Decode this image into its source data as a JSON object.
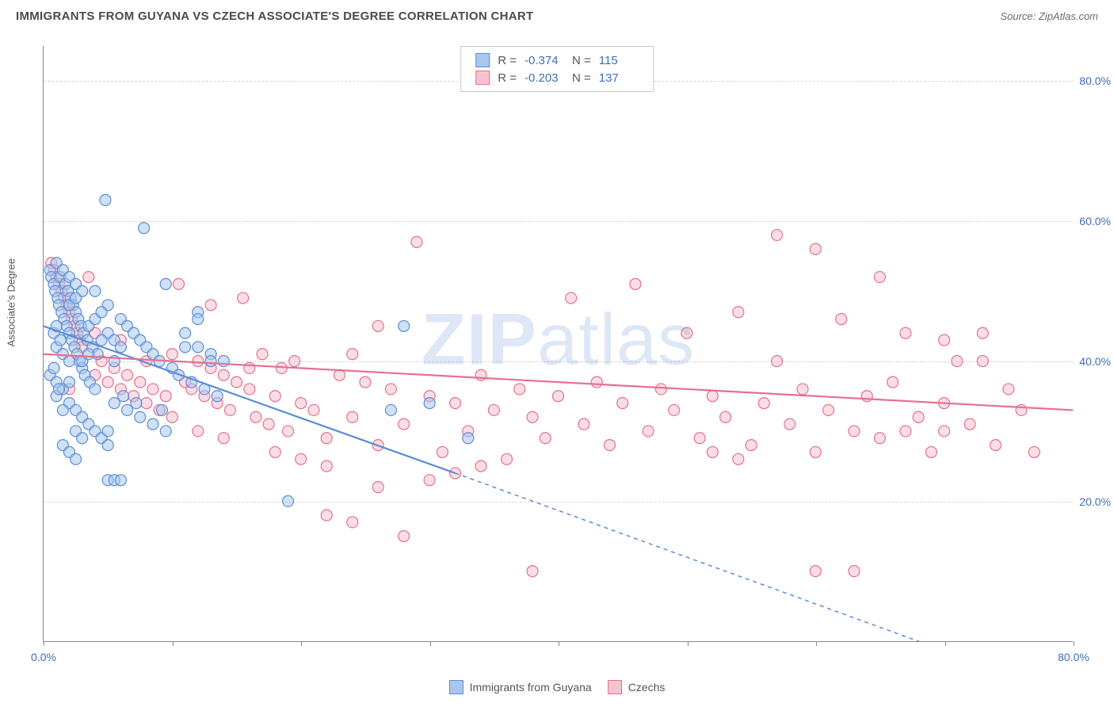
{
  "header": {
    "title": "IMMIGRANTS FROM GUYANA VS CZECH ASSOCIATE'S DEGREE CORRELATION CHART",
    "source": "Source: ZipAtlas.com"
  },
  "chart": {
    "type": "scatter",
    "xlim": [
      0,
      80
    ],
    "ylim": [
      0,
      85
    ],
    "x_axis_label_min": "0.0%",
    "x_axis_label_max": "80.0%",
    "yticks": [
      {
        "v": 20,
        "label": "20.0%"
      },
      {
        "v": 40,
        "label": "40.0%"
      },
      {
        "v": 60,
        "label": "60.0%"
      },
      {
        "v": 80,
        "label": "80.0%"
      }
    ],
    "xtick_positions": [
      0,
      10,
      20,
      30,
      40,
      50,
      60,
      70,
      80
    ],
    "ylabel": "Associate's Degree",
    "background_color": "#ffffff",
    "grid_color": "#d4d4d4",
    "axis_color": "#888888",
    "tick_label_color": "#3d6fb5",
    "watermark": "ZIPatlas",
    "marker_radius": 7,
    "marker_stroke_width": 1.2,
    "line_width": 2.2,
    "dash_pattern": "5,5"
  },
  "series": [
    {
      "name": "Immigrants from Guyana",
      "color_fill": "#a9c6ec",
      "color_stroke": "#5b8dd6",
      "fill_opacity": 0.55,
      "R": "-0.374",
      "N": "115",
      "trend": {
        "x1": 0,
        "y1": 45,
        "x2_solid": 32,
        "y2_solid": 24,
        "x2_dash": 80,
        "y2_dash": -8
      },
      "points": [
        [
          0.5,
          53
        ],
        [
          0.6,
          52
        ],
        [
          0.8,
          51
        ],
        [
          0.9,
          50
        ],
        [
          1,
          54
        ],
        [
          1.1,
          49
        ],
        [
          1.2,
          48
        ],
        [
          1.3,
          52
        ],
        [
          1.4,
          47
        ],
        [
          1.5,
          53
        ],
        [
          1.6,
          46
        ],
        [
          1.7,
          51
        ],
        [
          1.8,
          45
        ],
        [
          1.9,
          50
        ],
        [
          2,
          44
        ],
        [
          2.1,
          49
        ],
        [
          2.2,
          43
        ],
        [
          2.3,
          48
        ],
        [
          2.4,
          42
        ],
        [
          2.5,
          47
        ],
        [
          2.6,
          41
        ],
        [
          2.7,
          46
        ],
        [
          2.8,
          40
        ],
        [
          2.9,
          45
        ],
        [
          3,
          39
        ],
        [
          3.1,
          44
        ],
        [
          3.2,
          38
        ],
        [
          3.4,
          43
        ],
        [
          3.6,
          37
        ],
        [
          3.8,
          42
        ],
        [
          4,
          36
        ],
        [
          4.2,
          41
        ],
        [
          4.8,
          63
        ],
        [
          5,
          48
        ],
        [
          5.5,
          40
        ],
        [
          6,
          46
        ],
        [
          6.2,
          35
        ],
        [
          6.5,
          45
        ],
        [
          7,
          44
        ],
        [
          7.2,
          34
        ],
        [
          7.5,
          43
        ],
        [
          7.8,
          59
        ],
        [
          8,
          42
        ],
        [
          8.5,
          41
        ],
        [
          9,
          40
        ],
        [
          9.2,
          33
        ],
        [
          9.5,
          51
        ],
        [
          10,
          39
        ],
        [
          10.5,
          38
        ],
        [
          11,
          42
        ],
        [
          11.5,
          37
        ],
        [
          12,
          47
        ],
        [
          12.5,
          36
        ],
        [
          13,
          41
        ],
        [
          13.5,
          35
        ],
        [
          14,
          40
        ],
        [
          2,
          34
        ],
        [
          2.5,
          33
        ],
        [
          3,
          32
        ],
        [
          3.5,
          31
        ],
        [
          4,
          30
        ],
        [
          4.5,
          29
        ],
        [
          5,
          28
        ],
        [
          1,
          35
        ],
        [
          1.5,
          36
        ],
        [
          2,
          37
        ],
        [
          2.5,
          30
        ],
        [
          3,
          29
        ],
        [
          3.5,
          45
        ],
        [
          4,
          46
        ],
        [
          4.5,
          47
        ],
        [
          5,
          44
        ],
        [
          5.5,
          43
        ],
        [
          6,
          42
        ],
        [
          1.5,
          28
        ],
        [
          2,
          27
        ],
        [
          2.5,
          26
        ],
        [
          3,
          40
        ],
        [
          3.5,
          41
        ],
        [
          4,
          50
        ],
        [
          2,
          52
        ],
        [
          2.5,
          51
        ],
        [
          3,
          50
        ],
        [
          1,
          42
        ],
        [
          1.5,
          41
        ],
        [
          2,
          40
        ],
        [
          0.8,
          44
        ],
        [
          1,
          45
        ],
        [
          1.3,
          43
        ],
        [
          5,
          23
        ],
        [
          5.5,
          23
        ],
        [
          6,
          23
        ],
        [
          12,
          46
        ],
        [
          4.5,
          43
        ],
        [
          5,
          30
        ],
        [
          0.5,
          38
        ],
        [
          0.8,
          39
        ],
        [
          1,
          37
        ],
        [
          1.2,
          36
        ],
        [
          1.5,
          33
        ],
        [
          2,
          48
        ],
        [
          2.5,
          49
        ],
        [
          11,
          44
        ],
        [
          12,
          42
        ],
        [
          13,
          40
        ],
        [
          19,
          20
        ],
        [
          27,
          33
        ],
        [
          28,
          45
        ],
        [
          30,
          34
        ],
        [
          33,
          29
        ],
        [
          5.5,
          34
        ],
        [
          6.5,
          33
        ],
        [
          7.5,
          32
        ],
        [
          8.5,
          31
        ],
        [
          9.5,
          30
        ]
      ]
    },
    {
      "name": "Czechs",
      "color_fill": "#f5c3ce",
      "color_stroke": "#e76f8e",
      "fill_opacity": 0.55,
      "R": "-0.203",
      "N": "137",
      "trend": {
        "x1": 0,
        "y1": 41,
        "x2_solid": 80,
        "y2_solid": 33,
        "x2_dash": 80,
        "y2_dash": 33
      },
      "points": [
        [
          0.6,
          54
        ],
        [
          0.8,
          53
        ],
        [
          1,
          52
        ],
        [
          1.2,
          51
        ],
        [
          1.4,
          50
        ],
        [
          1.6,
          49
        ],
        [
          1.8,
          48
        ],
        [
          2,
          47
        ],
        [
          2.2,
          46
        ],
        [
          2.4,
          45
        ],
        [
          2.6,
          44
        ],
        [
          2.8,
          43
        ],
        [
          3,
          42
        ],
        [
          3.5,
          52
        ],
        [
          4,
          38
        ],
        [
          4.5,
          40
        ],
        [
          5,
          37
        ],
        [
          5.5,
          39
        ],
        [
          6,
          36
        ],
        [
          6.5,
          38
        ],
        [
          7,
          35
        ],
        [
          7.5,
          37
        ],
        [
          8,
          34
        ],
        [
          8.5,
          36
        ],
        [
          9,
          33
        ],
        [
          9.5,
          35
        ],
        [
          10,
          32
        ],
        [
          10.5,
          51
        ],
        [
          11,
          37
        ],
        [
          11.5,
          36
        ],
        [
          12,
          40
        ],
        [
          12.5,
          35
        ],
        [
          13,
          39
        ],
        [
          13.5,
          34
        ],
        [
          14,
          38
        ],
        [
          14.5,
          33
        ],
        [
          15,
          37
        ],
        [
          15.5,
          49
        ],
        [
          16,
          36
        ],
        [
          16.5,
          32
        ],
        [
          17,
          41
        ],
        [
          17.5,
          31
        ],
        [
          18,
          35
        ],
        [
          18.5,
          39
        ],
        [
          19,
          30
        ],
        [
          19.5,
          40
        ],
        [
          20,
          34
        ],
        [
          21,
          33
        ],
        [
          22,
          29
        ],
        [
          23,
          38
        ],
        [
          24,
          32
        ],
        [
          25,
          37
        ],
        [
          26,
          28
        ],
        [
          27,
          36
        ],
        [
          28,
          31
        ],
        [
          29,
          57
        ],
        [
          30,
          35
        ],
        [
          31,
          27
        ],
        [
          32,
          34
        ],
        [
          33,
          30
        ],
        [
          34,
          38
        ],
        [
          35,
          33
        ],
        [
          36,
          26
        ],
        [
          37,
          36
        ],
        [
          38,
          32
        ],
        [
          39,
          29
        ],
        [
          40,
          35
        ],
        [
          41,
          49
        ],
        [
          42,
          31
        ],
        [
          43,
          37
        ],
        [
          44,
          28
        ],
        [
          45,
          34
        ],
        [
          46,
          51
        ],
        [
          47,
          30
        ],
        [
          48,
          36
        ],
        [
          49,
          33
        ],
        [
          50,
          44
        ],
        [
          51,
          29
        ],
        [
          52,
          35
        ],
        [
          53,
          32
        ],
        [
          54,
          47
        ],
        [
          55,
          28
        ],
        [
          56,
          34
        ],
        [
          57,
          40
        ],
        [
          58,
          31
        ],
        [
          59,
          36
        ],
        [
          60,
          27
        ],
        [
          61,
          33
        ],
        [
          62,
          46
        ],
        [
          63,
          30
        ],
        [
          64,
          35
        ],
        [
          65,
          29
        ],
        [
          66,
          37
        ],
        [
          67,
          44
        ],
        [
          68,
          32
        ],
        [
          69,
          27
        ],
        [
          70,
          34
        ],
        [
          71,
          40
        ],
        [
          72,
          31
        ],
        [
          73,
          44
        ],
        [
          74,
          28
        ],
        [
          75,
          36
        ],
        [
          76,
          33
        ],
        [
          77,
          27
        ],
        [
          60,
          56
        ],
        [
          65,
          52
        ],
        [
          70,
          43
        ],
        [
          57,
          58
        ],
        [
          18,
          27
        ],
        [
          20,
          26
        ],
        [
          22,
          25
        ],
        [
          24,
          41
        ],
        [
          26,
          45
        ],
        [
          10,
          41
        ],
        [
          12,
          30
        ],
        [
          14,
          29
        ],
        [
          16,
          39
        ],
        [
          8,
          40
        ],
        [
          6,
          43
        ],
        [
          4,
          44
        ],
        [
          2,
          36
        ],
        [
          22,
          18
        ],
        [
          24,
          17
        ],
        [
          26,
          22
        ],
        [
          28,
          15
        ],
        [
          30,
          23
        ],
        [
          32,
          24
        ],
        [
          34,
          25
        ],
        [
          13,
          48
        ],
        [
          60,
          10
        ],
        [
          63,
          10
        ],
        [
          52,
          27
        ],
        [
          54,
          26
        ],
        [
          67,
          30
        ],
        [
          70,
          30
        ],
        [
          73,
          40
        ],
        [
          38,
          10
        ]
      ]
    }
  ],
  "legend": {
    "series1_label": "Immigrants from Guyana",
    "series2_label": "Czechs"
  },
  "stats_labels": {
    "r": "R =",
    "n": "N ="
  }
}
